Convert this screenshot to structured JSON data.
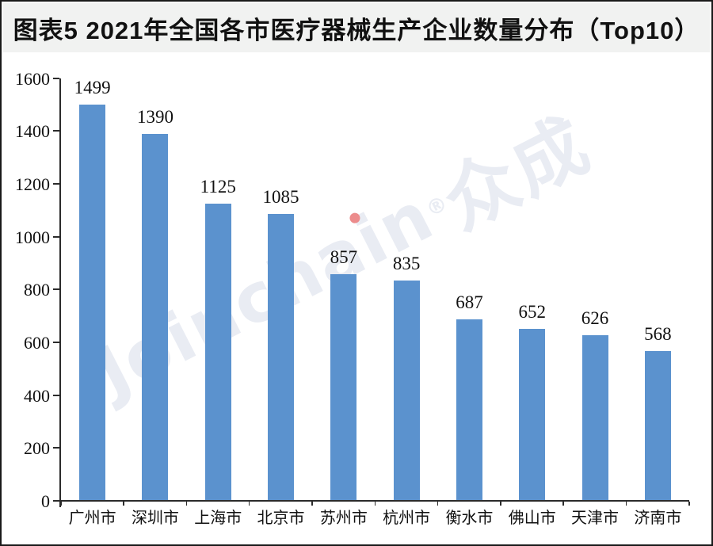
{
  "header": {
    "title": "图表5  2021年全国各市医疗器械生产企业数量分布（Top10）"
  },
  "watermark": {
    "brand_prefix": "Joincha",
    "brand_i": "i",
    "brand_suffix": "n",
    "reg_mark": "®",
    "cjk_name": "众成",
    "text_color": "#e9ecf3",
    "i_dot_color": "#ec8c8c"
  },
  "chart_data": {
    "type": "bar",
    "title": "图表5  2021年全国各市医疗器械生产企业数量分布（Top10）",
    "categories": [
      "广州市",
      "深圳市",
      "上海市",
      "北京市",
      "苏州市",
      "杭州市",
      "衡水市",
      "佛山市",
      "天津市",
      "济南市"
    ],
    "values": [
      1499,
      1390,
      1125,
      1085,
      857,
      835,
      687,
      652,
      626,
      568
    ],
    "xlabel": "",
    "ylabel": "",
    "ylim": [
      0,
      1600
    ],
    "yticks": [
      0,
      200,
      400,
      600,
      800,
      1000,
      1200,
      1400,
      1600
    ],
    "grid": false,
    "legend": null,
    "data_labels": true,
    "bar_color": "#5b92ce",
    "axis_color": "#2b2b2b"
  },
  "colors": {
    "title_band_bg": "#f1f2f1",
    "frame_border": "#1a1a1a",
    "plot_bg": "#ffffff"
  }
}
